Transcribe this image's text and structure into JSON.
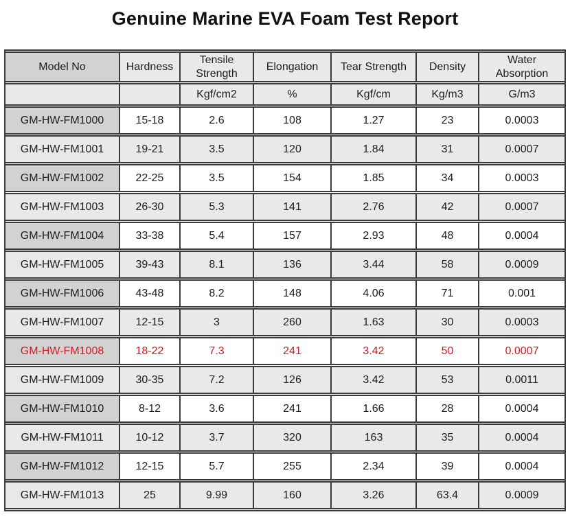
{
  "title": "Genuine Marine EVA Foam Test Report",
  "colors": {
    "highlight_text": "#d31a20",
    "border": "#3a3a3a",
    "model_column_bg": "#d2d2d2",
    "alt_row_bg": "#e9e9e9",
    "header_bg": "#e9e9e9",
    "row_bg": "#ffffff"
  },
  "table": {
    "columns": [
      {
        "label": "Model No",
        "unit": ""
      },
      {
        "label": "Hardness",
        "unit": ""
      },
      {
        "label": "Tensile Strength",
        "unit": "Kgf/cm2"
      },
      {
        "label": "Elongation",
        "unit": "%"
      },
      {
        "label": "Tear Strength",
        "unit": "Kgf/cm"
      },
      {
        "label": "Density",
        "unit": "Kg/m3"
      },
      {
        "label": "Water Absorption",
        "unit": "G/m3"
      }
    ],
    "rows": [
      {
        "model": "GM-HW-FM1000",
        "hardness": "15-18",
        "tensile": "2.6",
        "elongation": "108",
        "tear": "1.27",
        "density": "23",
        "water": "0.0003",
        "highlight": false
      },
      {
        "model": "GM-HW-FM1001",
        "hardness": "19-21",
        "tensile": "3.5",
        "elongation": "120",
        "tear": "1.84",
        "density": "31",
        "water": "0.0007",
        "highlight": false
      },
      {
        "model": "GM-HW-FM1002",
        "hardness": "22-25",
        "tensile": "3.5",
        "elongation": "154",
        "tear": "1.85",
        "density": "34",
        "water": "0.0003",
        "highlight": false
      },
      {
        "model": "GM-HW-FM1003",
        "hardness": "26-30",
        "tensile": "5.3",
        "elongation": "141",
        "tear": "2.76",
        "density": "42",
        "water": "0.0007",
        "highlight": false
      },
      {
        "model": "GM-HW-FM1004",
        "hardness": "33-38",
        "tensile": "5.4",
        "elongation": "157",
        "tear": "2.93",
        "density": "48",
        "water": "0.0004",
        "highlight": false
      },
      {
        "model": "GM-HW-FM1005",
        "hardness": "39-43",
        "tensile": "8.1",
        "elongation": "136",
        "tear": "3.44",
        "density": "58",
        "water": "0.0009",
        "highlight": false
      },
      {
        "model": "GM-HW-FM1006",
        "hardness": "43-48",
        "tensile": "8.2",
        "elongation": "148",
        "tear": "4.06",
        "density": "71",
        "water": "0.001",
        "highlight": false
      },
      {
        "model": "GM-HW-FM1007",
        "hardness": "12-15",
        "tensile": "3",
        "elongation": "260",
        "tear": "1.63",
        "density": "30",
        "water": "0.0003",
        "highlight": false
      },
      {
        "model": "GM-HW-FM1008",
        "hardness": "18-22",
        "tensile": "7.3",
        "elongation": "241",
        "tear": "3.42",
        "density": "50",
        "water": "0.0007",
        "highlight": true
      },
      {
        "model": "GM-HW-FM1009",
        "hardness": "30-35",
        "tensile": "7.2",
        "elongation": "126",
        "tear": "3.42",
        "density": "53",
        "water": "0.0011",
        "highlight": false
      },
      {
        "model": "GM-HW-FM1010",
        "hardness": "8-12",
        "tensile": "3.6",
        "elongation": "241",
        "tear": "1.66",
        "density": "28",
        "water": "0.0004",
        "highlight": false
      },
      {
        "model": "GM-HW-FM1011",
        "hardness": "10-12",
        "tensile": "3.7",
        "elongation": "320",
        "tear": "163",
        "density": "35",
        "water": "0.0004",
        "highlight": false
      },
      {
        "model": "GM-HW-FM1012",
        "hardness": "12-15",
        "tensile": "5.7",
        "elongation": "255",
        "tear": "2.34",
        "density": "39",
        "water": "0.0004",
        "highlight": false
      },
      {
        "model": "GM-HW-FM1013",
        "hardness": "25",
        "tensile": "9.99",
        "elongation": "160",
        "tear": "3.26",
        "density": "63.4",
        "water": "0.0009",
        "highlight": false
      }
    ]
  }
}
